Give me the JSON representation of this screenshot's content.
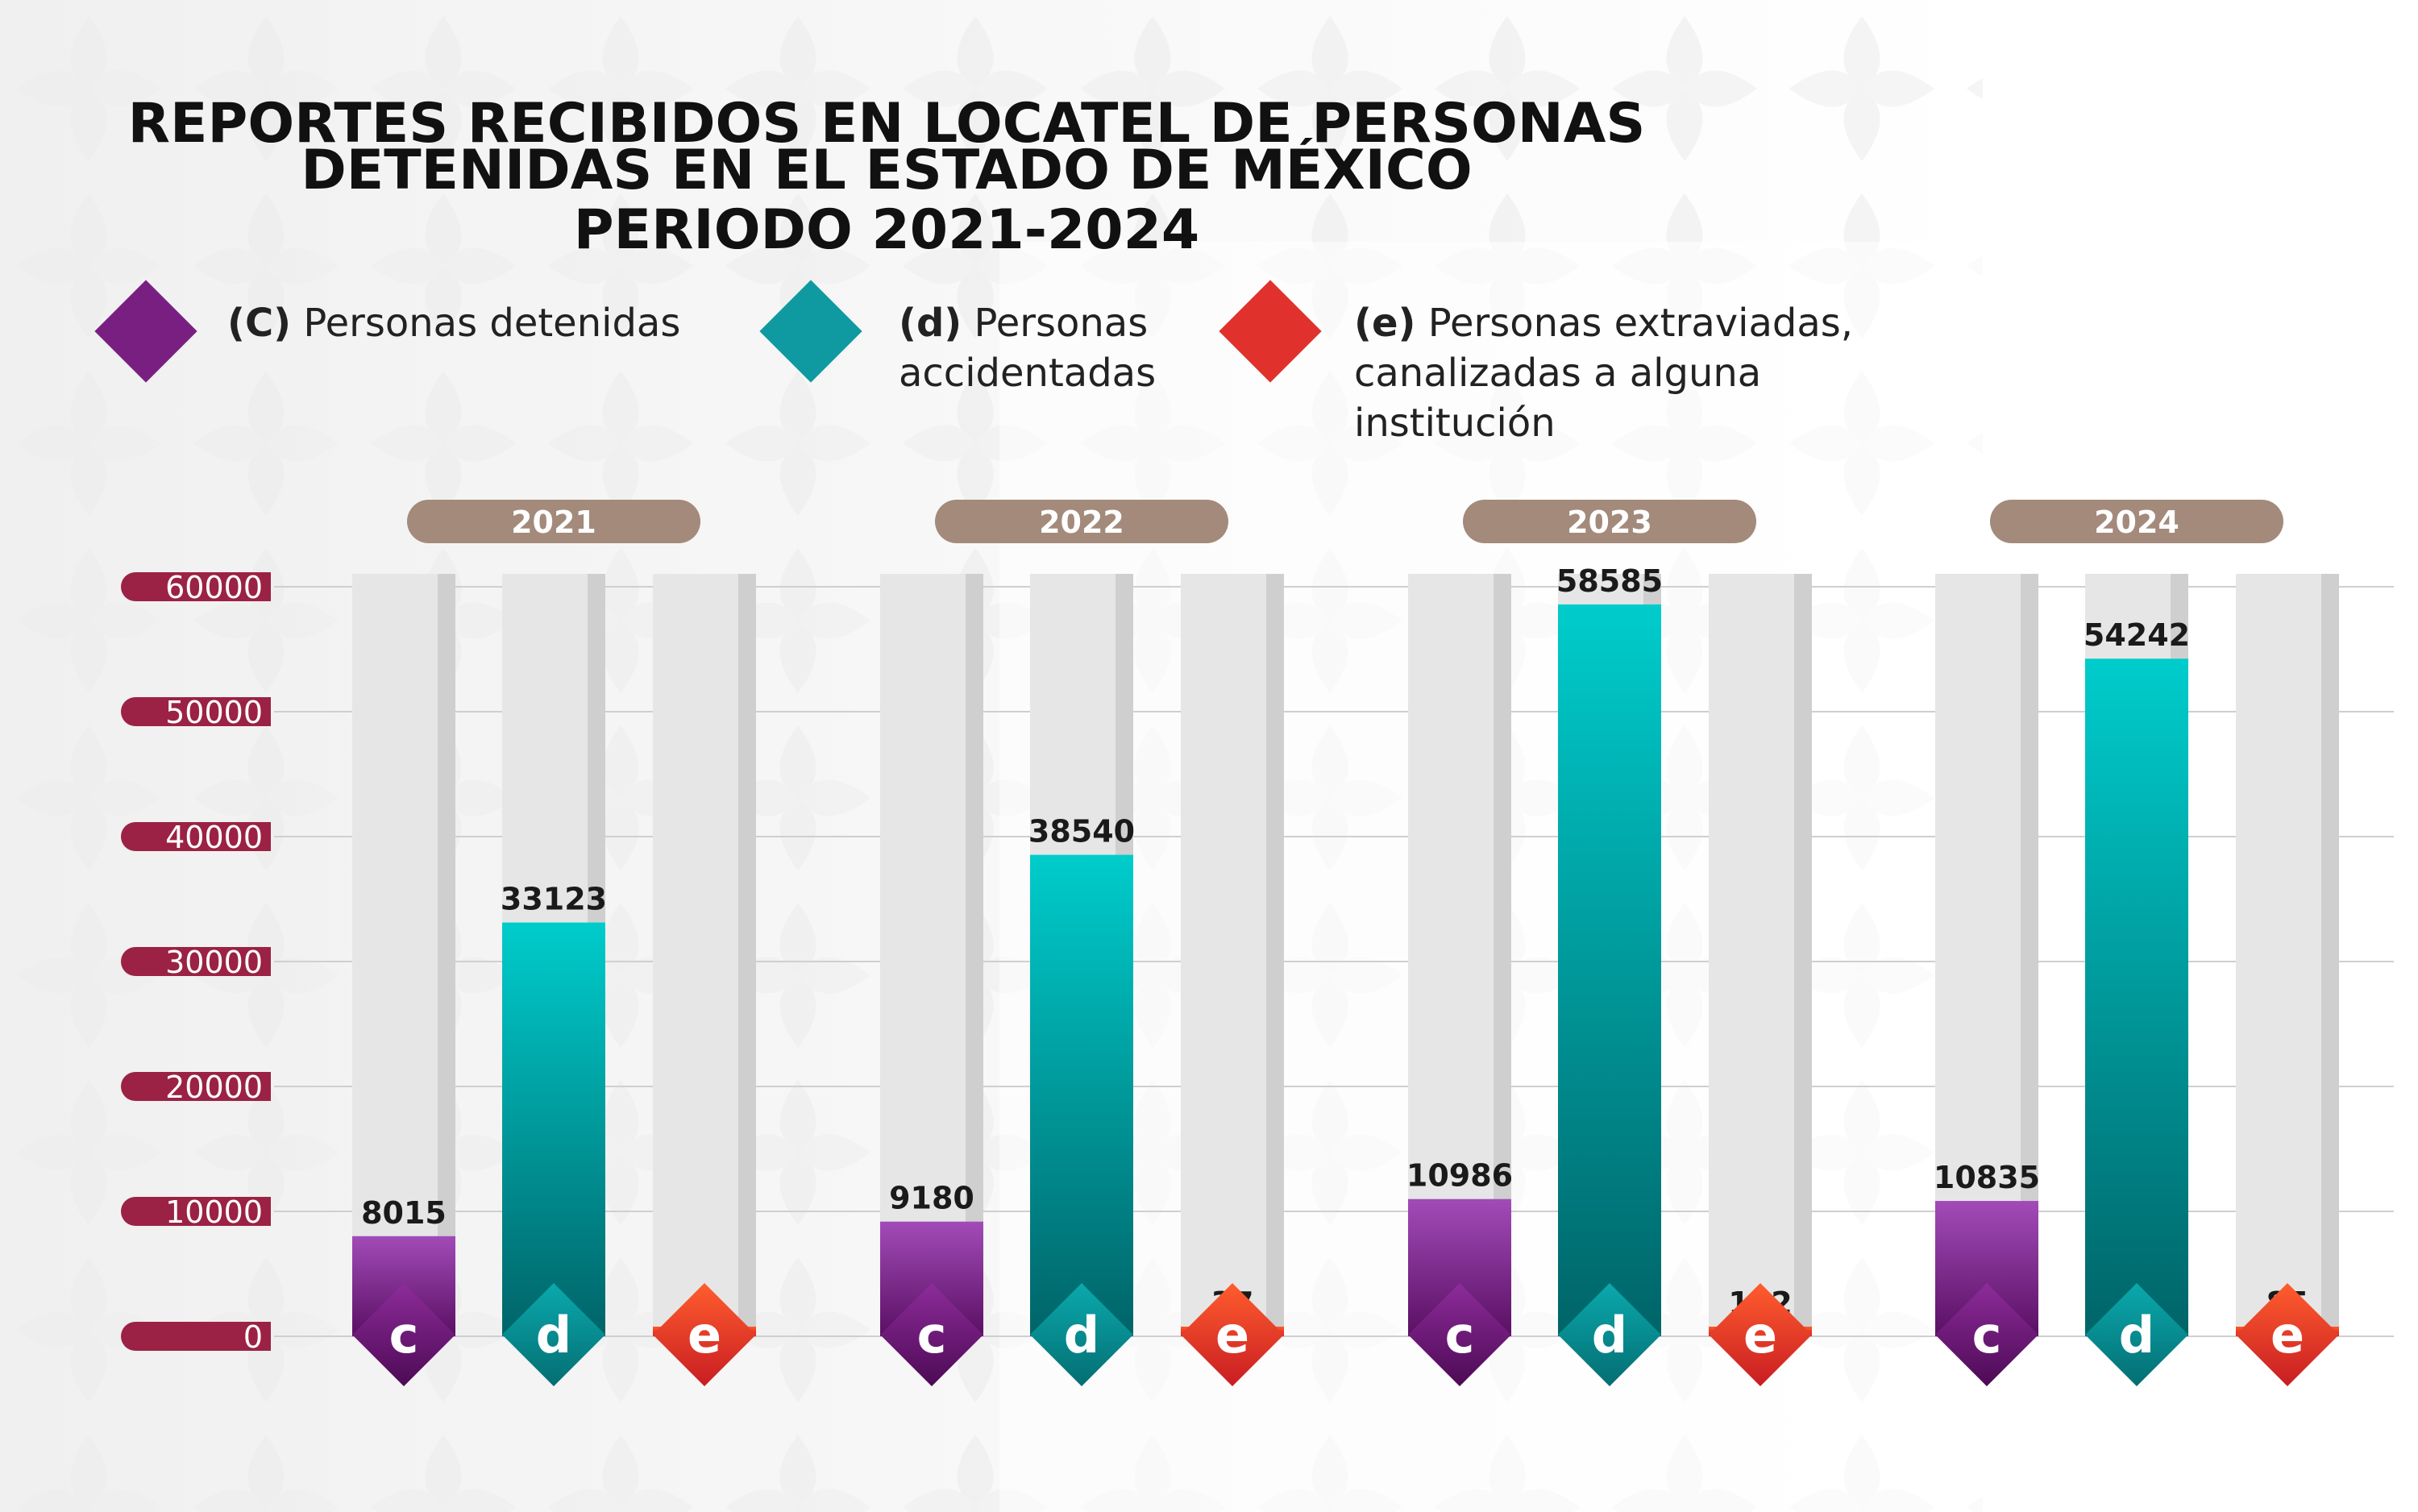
{
  "title": {
    "line1": "REPORTES RECIBIDOS EN LOCATEL DE PERSONAS",
    "line2": "DETENIDAS EN EL ESTADO DE MÉXICO",
    "line3": "PERIODO 2021-2024"
  },
  "legend": [
    {
      "key": "(C)",
      "label": "Personas detenidas",
      "color": "#7a1f82"
    },
    {
      "key": "(d)",
      "label": "Personas accidentadas",
      "color": "#0e9aa0"
    },
    {
      "key": "(e)",
      "label": "Personas extraviadas, canalizadas a alguna institución",
      "color": "#e0312c"
    }
  ],
  "colors": {
    "c_top": "#a24bb8",
    "c_bottom": "#5a0f63",
    "d_top": "#00cccc",
    "d_bottom": "#006468",
    "e_top": "#ff5a2a",
    "e_bottom": "#d0201f",
    "axis_tick_bg": "#9b2244",
    "year_badge": "#a38a7a",
    "track": "#e6e6e6",
    "track_shadow": "#cfcfcf"
  },
  "chart_data": {
    "type": "bar",
    "categories": [
      "2021",
      "2022",
      "2023",
      "2024"
    ],
    "series": [
      {
        "name": "c",
        "values": [
          8015,
          9180,
          10986,
          10835
        ]
      },
      {
        "name": "d",
        "values": [
          33123,
          38540,
          58585,
          54242
        ]
      },
      {
        "name": "e",
        "values": [
          6,
          37,
          162,
          85
        ]
      }
    ],
    "y_ticks": [
      0,
      10000,
      20000,
      30000,
      40000,
      50000,
      60000
    ],
    "ylim": [
      0,
      60000
    ],
    "grid": true,
    "legend_position": "top"
  }
}
